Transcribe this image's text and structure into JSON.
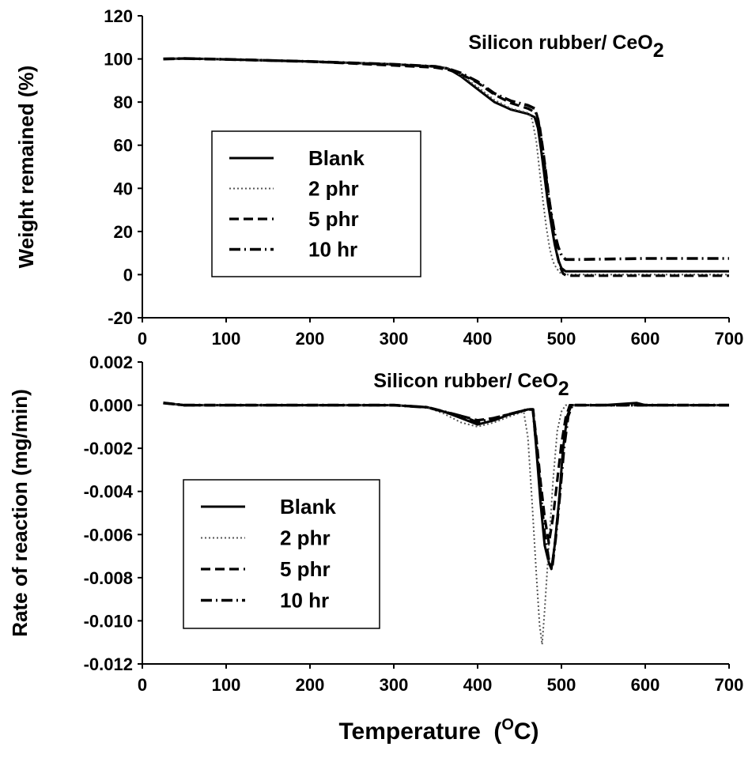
{
  "figure": {
    "x_title": "Temperature",
    "x_title_sup": "O",
    "x_title_suffix": "C)",
    "x_title_prefix": "("
  },
  "chart_data": [
    {
      "type": "line",
      "title": "Silicon rubber/ CeO",
      "title_sub": "2",
      "xlabel": "",
      "ylabel": "Weight remained (%)",
      "xlim": [
        0,
        700
      ],
      "ylim": [
        -20,
        120
      ],
      "xticks": [
        0,
        100,
        200,
        300,
        400,
        500,
        600,
        700
      ],
      "yticks": [
        -20,
        0,
        20,
        40,
        60,
        80,
        100,
        120
      ],
      "ytick_labels": [
        "-20",
        "0",
        "20",
        "40",
        "60",
        "80",
        "100",
        "120"
      ],
      "legend_position": "center-left",
      "series": [
        {
          "name": "Blank",
          "style": "solid",
          "x": [
            25,
            50,
            100,
            200,
            300,
            350,
            365,
            380,
            400,
            420,
            440,
            460,
            468,
            472,
            476,
            480,
            484,
            488,
            492,
            496,
            500,
            505,
            510,
            520,
            600,
            700
          ],
          "y": [
            100,
            100.2,
            99.8,
            98.8,
            97.5,
            96.5,
            95.5,
            92,
            86,
            80,
            76.5,
            74.5,
            73,
            68,
            57,
            45,
            33,
            23,
            14,
            7,
            3,
            1.5,
            1.5,
            1.5,
            1.5,
            1.5
          ]
        },
        {
          "name": "2 phr",
          "style": "dotted",
          "x": [
            25,
            50,
            100,
            200,
            300,
            350,
            365,
            380,
            400,
            420,
            440,
            460,
            465,
            470,
            474,
            478,
            482,
            486,
            490,
            494,
            498,
            503,
            510,
            600,
            700
          ],
          "y": [
            100,
            100.2,
            99.8,
            98.8,
            97.5,
            96.5,
            95.5,
            92.5,
            87,
            81,
            77,
            75,
            72,
            62,
            48,
            34,
            22,
            12,
            6,
            3,
            1,
            0,
            0,
            0,
            0
          ]
        },
        {
          "name": "5 phr",
          "style": "dashed",
          "x": [
            25,
            50,
            100,
            200,
            300,
            350,
            365,
            380,
            400,
            420,
            440,
            460,
            470,
            474,
            478,
            482,
            486,
            490,
            494,
            498,
            502,
            506,
            512,
            600,
            700
          ],
          "y": [
            100,
            100.2,
            99.8,
            98.8,
            97,
            96,
            95,
            93,
            89,
            83.5,
            79.5,
            77,
            75,
            69,
            58,
            46,
            33,
            21,
            11,
            4,
            0.5,
            -0.5,
            -0.5,
            -0.5,
            -0.5
          ]
        },
        {
          "name": "10 hr",
          "style": "dashdot",
          "x": [
            25,
            50,
            100,
            200,
            300,
            350,
            365,
            380,
            400,
            420,
            440,
            460,
            468,
            472,
            476,
            480,
            484,
            488,
            492,
            496,
            500,
            505,
            512,
            520,
            600,
            700
          ],
          "y": [
            100,
            100.2,
            99.8,
            98.8,
            97.5,
            96.5,
            95.5,
            93.5,
            89.5,
            84,
            80.5,
            78.5,
            77,
            72,
            62,
            50,
            38,
            28,
            19,
            13,
            9,
            7,
            7,
            7,
            7.5,
            7.5
          ]
        }
      ]
    },
    {
      "type": "line",
      "title": "Silicon rubber/ CeO",
      "title_sub": "2",
      "xlabel": "",
      "ylabel": "Rate of reaction (mg/min)",
      "xlim": [
        0,
        700
      ],
      "ylim": [
        -0.012,
        0.002
      ],
      "xticks": [
        0,
        100,
        200,
        300,
        400,
        500,
        600,
        700
      ],
      "yticks": [
        -0.012,
        -0.01,
        -0.008,
        -0.006,
        -0.004,
        -0.002,
        0,
        0.002
      ],
      "ytick_labels": [
        "-0.012",
        "-0.010",
        "-0.008",
        "-0.006",
        "-0.004",
        "-0.002",
        "0.000",
        "0.002"
      ],
      "legend_position": "center-left",
      "series": [
        {
          "name": "Blank",
          "style": "solid",
          "x": [
            25,
            50,
            100,
            200,
            300,
            340,
            360,
            380,
            400,
            420,
            440,
            460,
            466,
            470,
            475,
            480,
            485,
            488,
            492,
            497,
            502,
            507,
            512,
            550,
            590,
            600,
            700
          ],
          "y": [
            0.0001,
            0,
            0,
            0,
            0,
            -0.0001,
            -0.0003,
            -0.0006,
            -0.0009,
            -0.0007,
            -0.0004,
            -0.0002,
            -0.0002,
            -0.002,
            -0.0045,
            -0.0065,
            -0.0073,
            -0.0076,
            -0.0065,
            -0.0045,
            -0.002,
            -0.0005,
            0,
            0,
            0.0001,
            0,
            0
          ]
        },
        {
          "name": "2 phr",
          "style": "dotted",
          "x": [
            25,
            50,
            100,
            200,
            300,
            340,
            360,
            380,
            400,
            420,
            440,
            455,
            460,
            465,
            470,
            474,
            477,
            480,
            485,
            490,
            495,
            500,
            505,
            600,
            700
          ],
          "y": [
            0.0001,
            0,
            0,
            0,
            0,
            -0.0001,
            -0.0004,
            -0.0008,
            -0.001,
            -0.0008,
            -0.0005,
            -0.0003,
            -0.0015,
            -0.0045,
            -0.0078,
            -0.0102,
            -0.0111,
            -0.0095,
            -0.0065,
            -0.0035,
            -0.0012,
            -0.0003,
            0,
            0,
            0
          ]
        },
        {
          "name": "5 phr",
          "style": "dashed",
          "x": [
            25,
            50,
            100,
            200,
            300,
            340,
            360,
            380,
            400,
            420,
            440,
            460,
            466,
            470,
            475,
            480,
            485,
            490,
            495,
            500,
            505,
            510,
            600,
            700
          ],
          "y": [
            0.0001,
            0,
            0,
            0,
            0,
            -0.0001,
            -0.0003,
            -0.0005,
            -0.0007,
            -0.0006,
            -0.0004,
            -0.0002,
            -0.0002,
            -0.0015,
            -0.0035,
            -0.0052,
            -0.0064,
            -0.0052,
            -0.0035,
            -0.0018,
            -0.0006,
            0,
            0,
            0
          ]
        },
        {
          "name": "10 hr",
          "style": "dashdot",
          "x": [
            25,
            50,
            100,
            200,
            300,
            340,
            360,
            380,
            400,
            420,
            440,
            460,
            466,
            470,
            475,
            480,
            485,
            489,
            493,
            498,
            503,
            508,
            513,
            600,
            700
          ],
          "y": [
            0.0001,
            0,
            0,
            0,
            0,
            -0.0001,
            -0.0003,
            -0.0005,
            -0.0008,
            -0.0006,
            -0.0004,
            -0.0002,
            -0.0002,
            -0.0018,
            -0.004,
            -0.006,
            -0.0072,
            -0.0075,
            -0.0062,
            -0.0042,
            -0.002,
            -0.0005,
            0,
            0,
            0
          ]
        }
      ]
    }
  ]
}
